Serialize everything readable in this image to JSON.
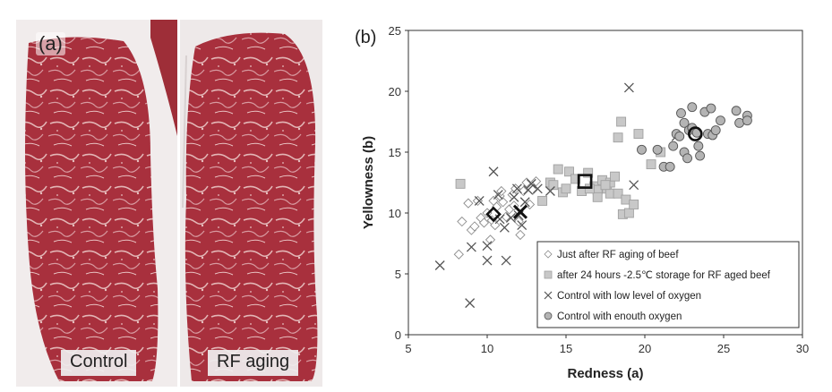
{
  "panel_a": {
    "label": "(a)",
    "captions": {
      "control": "Control",
      "rf": "RF aging"
    }
  },
  "panel_b": {
    "label": "(b)"
  },
  "chart_data": {
    "type": "scatter",
    "xlabel": "Redness (a)",
    "ylabel": "Yellowness (b)",
    "xlim": [
      5,
      30
    ],
    "ylim": [
      0,
      25
    ],
    "xticks": [
      5,
      10,
      15,
      20,
      25,
      30
    ],
    "yticks": [
      0,
      5,
      10,
      15,
      20,
      25
    ],
    "grid": false,
    "legend_position": "bottom-right",
    "series": [
      {
        "name": "Just after RF aging of beef",
        "marker": "diamond-open",
        "color": "#8c8c8c",
        "points": [
          [
            8.2,
            6.6
          ],
          [
            8.4,
            9.3
          ],
          [
            8.8,
            10.8
          ],
          [
            9.0,
            8.6
          ],
          [
            9.2,
            8.9
          ],
          [
            9.4,
            11.0
          ],
          [
            9.6,
            9.6
          ],
          [
            9.8,
            9.2
          ],
          [
            10.0,
            10.0
          ],
          [
            10.2,
            7.8
          ],
          [
            10.3,
            9.4
          ],
          [
            10.5,
            9.0
          ],
          [
            10.6,
            10.5
          ],
          [
            10.8,
            11.4
          ],
          [
            11.0,
            10.9
          ],
          [
            11.2,
            9.7
          ],
          [
            11.4,
            10.3
          ],
          [
            11.6,
            11.5
          ],
          [
            11.8,
            12.0
          ],
          [
            12.0,
            9.3
          ],
          [
            12.1,
            8.2
          ],
          [
            12.3,
            11.8
          ],
          [
            12.5,
            12.5
          ],
          [
            12.7,
            10.7
          ],
          [
            12.9,
            11.9
          ],
          [
            13.1,
            12.6
          ],
          [
            10.9,
            11.8
          ],
          [
            11.7,
            10.6
          ],
          [
            10.4,
            11.0
          ]
        ],
        "mean": [
          10.4,
          9.9
        ]
      },
      {
        "name": "after 24 hours -2.5℃ storage for RF aged beef",
        "marker": "square-filled",
        "color": "#c8c8c8",
        "points": [
          [
            8.3,
            12.4
          ],
          [
            13.5,
            11.0
          ],
          [
            14.0,
            12.5
          ],
          [
            14.5,
            13.6
          ],
          [
            14.8,
            11.7
          ],
          [
            15.2,
            13.4
          ],
          [
            15.6,
            12.8
          ],
          [
            16.0,
            11.8
          ],
          [
            16.4,
            13.3
          ],
          [
            16.8,
            12.2
          ],
          [
            17.0,
            11.9
          ],
          [
            17.3,
            12.7
          ],
          [
            17.6,
            12.0
          ],
          [
            17.8,
            11.6
          ],
          [
            17.8,
            12.5
          ],
          [
            18.1,
            13.0
          ],
          [
            18.3,
            11.6
          ],
          [
            18.6,
            9.9
          ],
          [
            18.8,
            11.1
          ],
          [
            19.0,
            10.0
          ],
          [
            19.3,
            10.7
          ],
          [
            19.6,
            16.5
          ],
          [
            20.4,
            14.0
          ],
          [
            21.0,
            15.0
          ],
          [
            18.5,
            17.5
          ],
          [
            18.3,
            16.2
          ],
          [
            17.0,
            11.3
          ],
          [
            16.5,
            12.0
          ],
          [
            15.0,
            12.0
          ],
          [
            14.2,
            12.3
          ],
          [
            17.5,
            12.3
          ]
        ],
        "mean": [
          16.2,
          12.6
        ]
      },
      {
        "name": "Control with low level of oxygen",
        "marker": "x",
        "color": "#555555",
        "points": [
          [
            7.0,
            5.7
          ],
          [
            8.9,
            2.6
          ],
          [
            9.0,
            7.2
          ],
          [
            9.5,
            11.0
          ],
          [
            10.0,
            7.3
          ],
          [
            10.0,
            6.1
          ],
          [
            10.4,
            13.4
          ],
          [
            10.8,
            9.5
          ],
          [
            11.1,
            8.8
          ],
          [
            11.2,
            6.1
          ],
          [
            11.5,
            9.6
          ],
          [
            11.7,
            11.3
          ],
          [
            11.9,
            12.0
          ],
          [
            12.0,
            9.8
          ],
          [
            12.2,
            9.0
          ],
          [
            12.4,
            10.9
          ],
          [
            12.6,
            11.9
          ],
          [
            12.8,
            12.4
          ],
          [
            13.2,
            12.0
          ],
          [
            14.0,
            11.8
          ],
          [
            19.0,
            20.3
          ],
          [
            19.3,
            12.3
          ],
          [
            22.0,
            16.3
          ],
          [
            10.7,
            11.5
          ]
        ],
        "mean": [
          12.1,
          10.1
        ]
      },
      {
        "name": "Control with enouth oxygen",
        "marker": "circle-filled",
        "color": "#b4b4b4",
        "points": [
          [
            19.8,
            15.2
          ],
          [
            20.8,
            15.2
          ],
          [
            21.2,
            13.8
          ],
          [
            21.6,
            13.8
          ],
          [
            21.8,
            15.5
          ],
          [
            22.0,
            16.5
          ],
          [
            22.2,
            16.3
          ],
          [
            22.3,
            18.2
          ],
          [
            22.5,
            17.4
          ],
          [
            22.5,
            15.0
          ],
          [
            22.7,
            14.5
          ],
          [
            22.8,
            16.8
          ],
          [
            23.0,
            18.7
          ],
          [
            23.0,
            17.0
          ],
          [
            23.3,
            16.6
          ],
          [
            23.4,
            15.5
          ],
          [
            23.5,
            14.7
          ],
          [
            23.8,
            18.3
          ],
          [
            24.0,
            16.5
          ],
          [
            24.2,
            18.6
          ],
          [
            24.3,
            16.4
          ],
          [
            24.5,
            16.8
          ],
          [
            24.8,
            17.6
          ],
          [
            25.8,
            18.4
          ],
          [
            26.0,
            17.4
          ],
          [
            26.5,
            18.0
          ],
          [
            26.5,
            17.6
          ]
        ],
        "mean": [
          23.2,
          16.5
        ]
      }
    ]
  }
}
